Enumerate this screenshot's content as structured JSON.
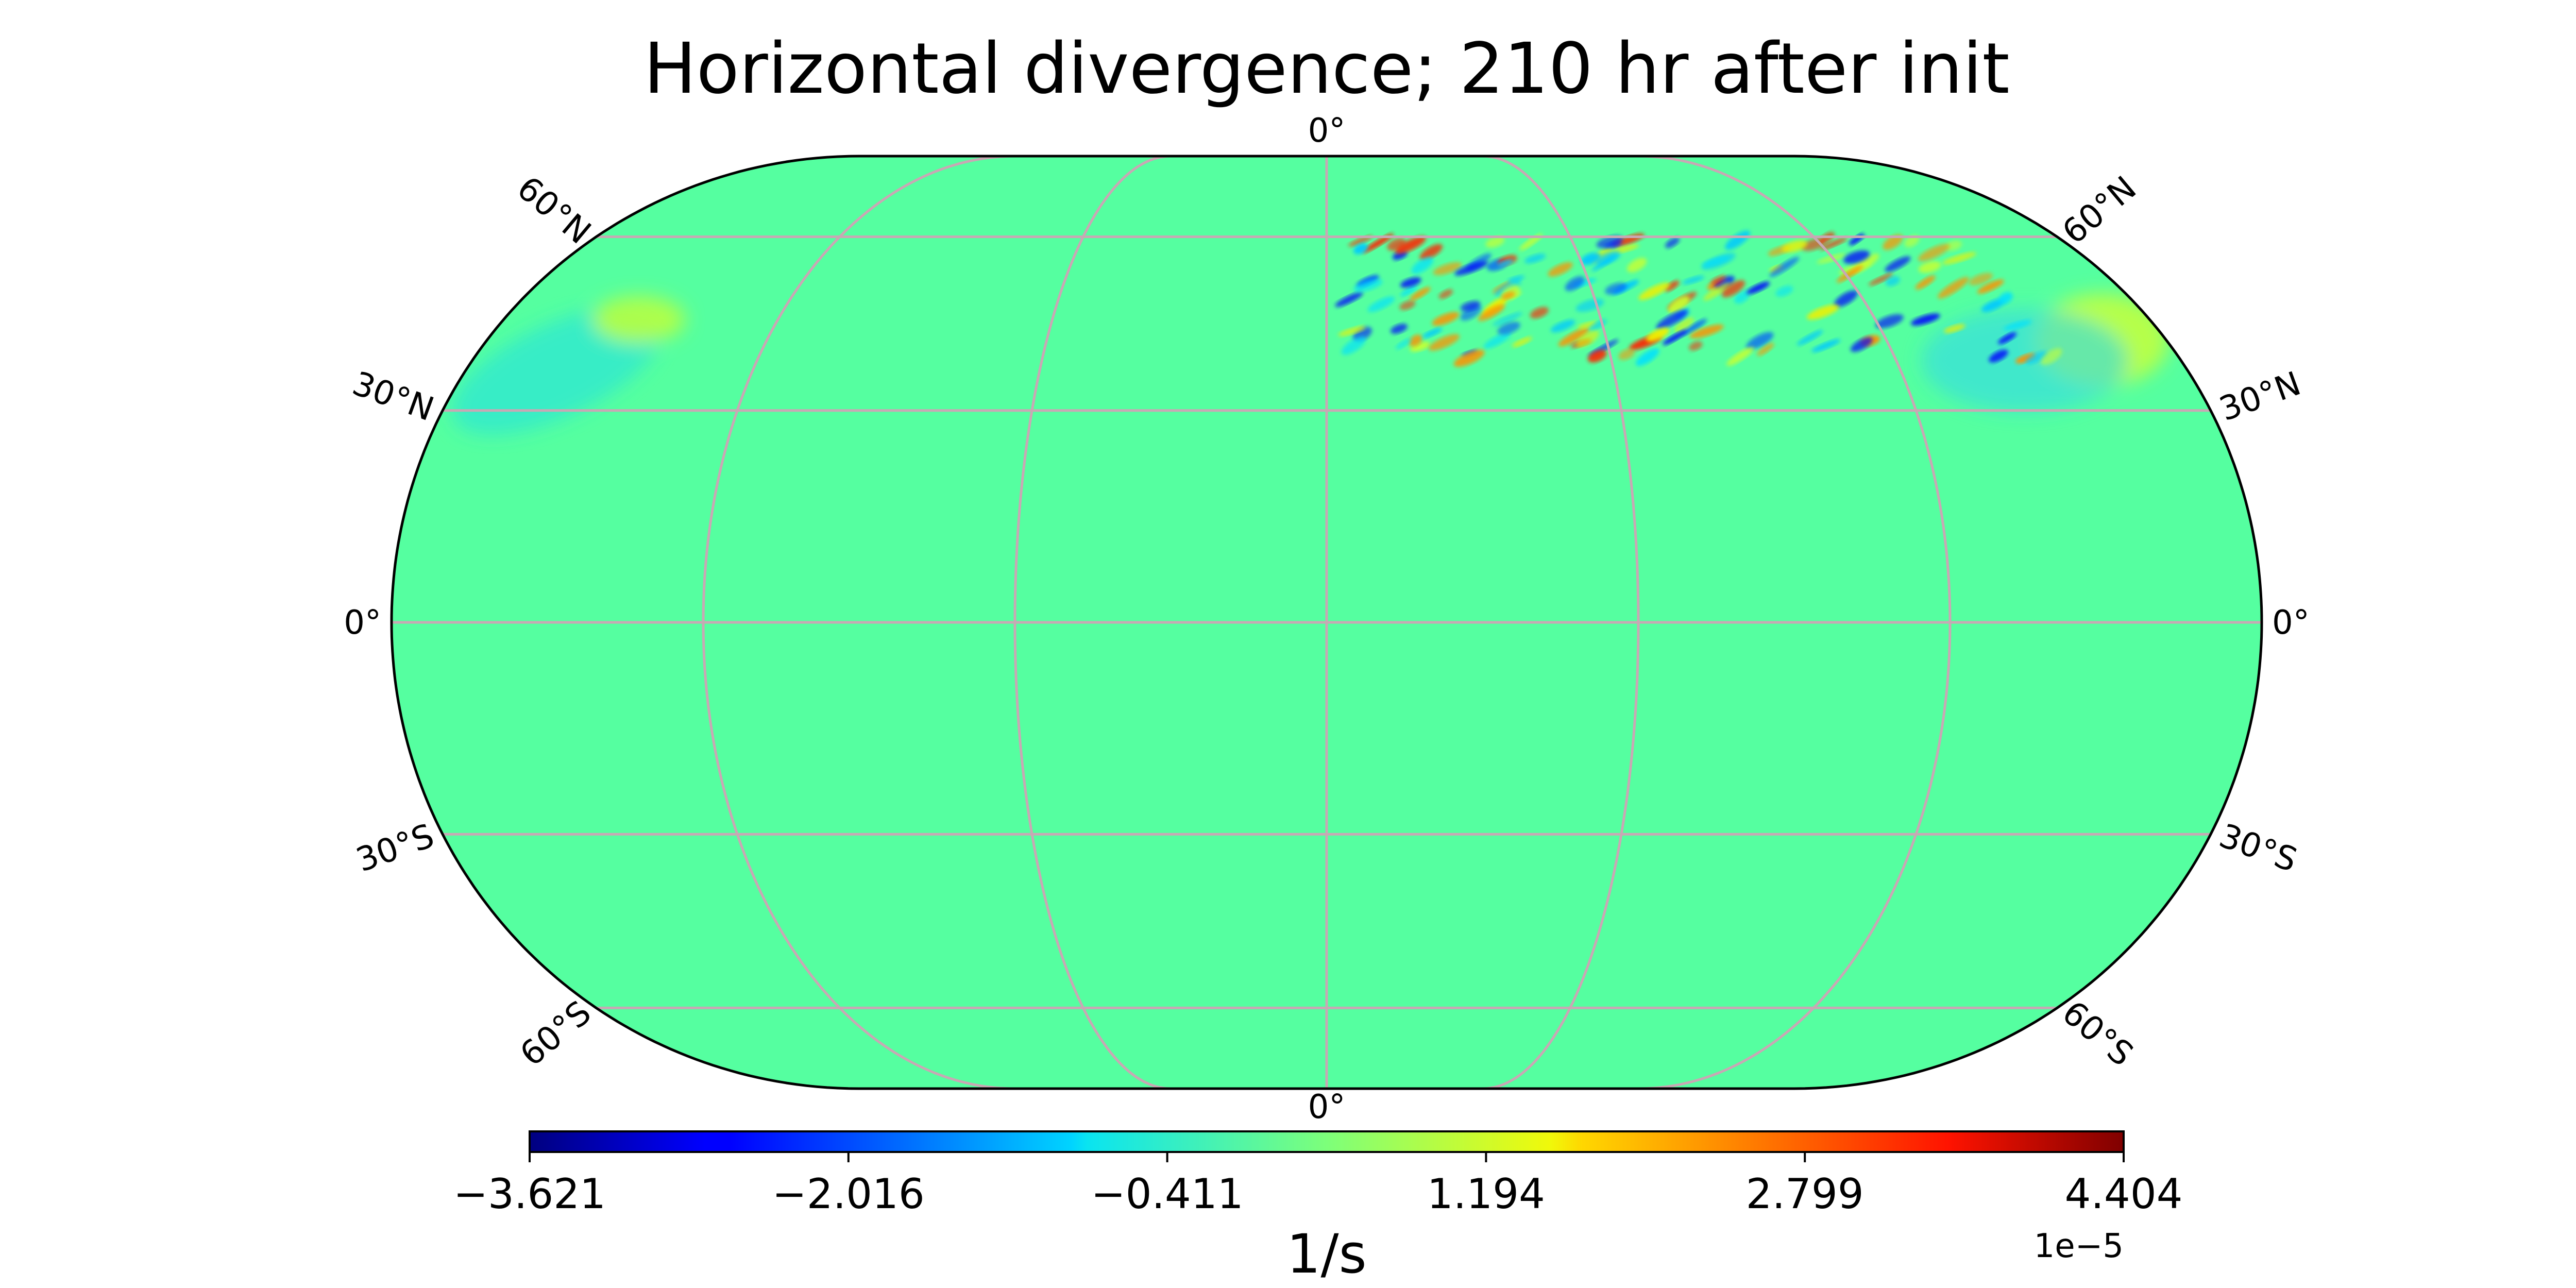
{
  "title": "Horizontal divergence; 210 hr after init",
  "projection": "Eckert IV (central meridian 0°)",
  "colormap": "jet",
  "colors": {
    "background_field": "#55ffa0",
    "gridline": "#c8a8b4",
    "outline": "#000000"
  },
  "meridian_labels": {
    "top": "0°",
    "bottom": "0°"
  },
  "parallel_labels": [
    {
      "text": "60°N",
      "lat": 60
    },
    {
      "text": "30°N",
      "lat": 30
    },
    {
      "text": "0°",
      "lat": 0
    },
    {
      "text": "30°S",
      "lat": -30
    },
    {
      "text": "60°S",
      "lat": -60
    }
  ],
  "colorbar": {
    "min": -3.621,
    "max": 4.404,
    "ticks": [
      "−3.621",
      "−2.016",
      "−0.411",
      "1.194",
      "2.799",
      "4.404"
    ],
    "unit_label": "1/s",
    "exponent_label": "1e−5"
  }
}
